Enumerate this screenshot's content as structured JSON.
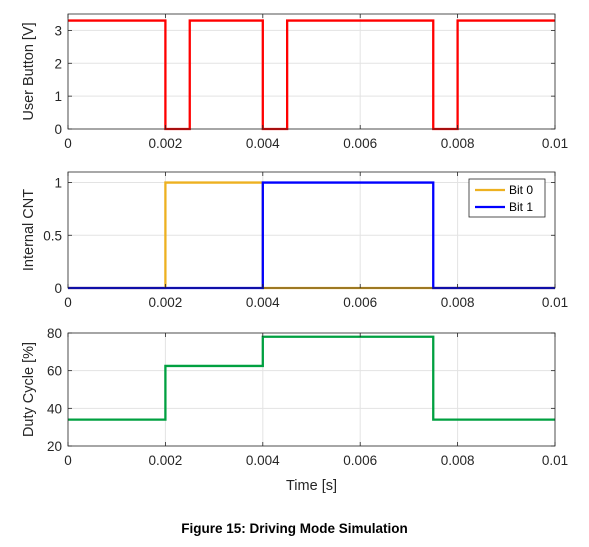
{
  "caption": "Figure 15: Driving Mode Simulation",
  "chart_data": [
    {
      "type": "line",
      "ylabel": "User Button [V]",
      "xlabel": "",
      "xlim": [
        0,
        0.01
      ],
      "ylim": [
        0,
        3.5
      ],
      "xticks": [
        0,
        0.002,
        0.004,
        0.006,
        0.008,
        0.01
      ],
      "xtick_labels": [
        "0",
        "0.002",
        "0.004",
        "0.006",
        "0.008",
        "0.01"
      ],
      "yticks": [
        0,
        1,
        2,
        3
      ],
      "ytick_labels": [
        "0",
        "1",
        "2",
        "3"
      ],
      "grid": true,
      "series": [
        {
          "color": "#ff0000",
          "x": [
            0,
            0.002,
            0.002,
            0.0025,
            0.0025,
            0.004,
            0.004,
            0.0045,
            0.0045,
            0.0075,
            0.0075,
            0.008,
            0.008,
            0.01
          ],
          "y": [
            3.3,
            3.3,
            0,
            0,
            3.3,
            3.3,
            0,
            0,
            3.3,
            3.3,
            0,
            0,
            3.3,
            3.3
          ]
        }
      ]
    },
    {
      "type": "line",
      "ylabel": "Internal CNT",
      "xlabel": "",
      "xlim": [
        0,
        0.01
      ],
      "ylim": [
        0,
        1.1
      ],
      "xticks": [
        0,
        0.002,
        0.004,
        0.006,
        0.008,
        0.01
      ],
      "xtick_labels": [
        "0",
        "0.002",
        "0.004",
        "0.006",
        "0.008",
        "0.01"
      ],
      "yticks": [
        0,
        0.5,
        1
      ],
      "ytick_labels": [
        "0",
        "0.5",
        "1"
      ],
      "grid": true,
      "legend": "top-right",
      "series": [
        {
          "name": "Bit 0",
          "color": "#edb120",
          "x": [
            0,
            0.002,
            0.002,
            0.004,
            0.004,
            0.01
          ],
          "y": [
            0,
            0,
            1,
            1,
            0,
            0
          ]
        },
        {
          "name": "Bit 1",
          "color": "#0000ff",
          "x": [
            0,
            0.004,
            0.004,
            0.0075,
            0.0075,
            0.01
          ],
          "y": [
            0,
            0,
            1,
            1,
            0,
            0
          ]
        }
      ]
    },
    {
      "type": "line",
      "ylabel": "Duty Cycle [%]",
      "xlabel": "Time [s]",
      "xlim": [
        0,
        0.01
      ],
      "ylim": [
        20,
        80
      ],
      "xticks": [
        0,
        0.002,
        0.004,
        0.006,
        0.008,
        0.01
      ],
      "xtick_labels": [
        "0",
        "0.002",
        "0.004",
        "0.006",
        "0.008",
        "0.01"
      ],
      "yticks": [
        20,
        40,
        60,
        80
      ],
      "ytick_labels": [
        "20",
        "40",
        "60",
        "80"
      ],
      "grid": true,
      "series": [
        {
          "color": "#00a040",
          "x": [
            0,
            0.002,
            0.002,
            0.004,
            0.004,
            0.0075,
            0.0075,
            0.01
          ],
          "y": [
            34,
            34,
            62.5,
            62.5,
            78,
            78,
            34,
            34
          ]
        }
      ]
    }
  ]
}
